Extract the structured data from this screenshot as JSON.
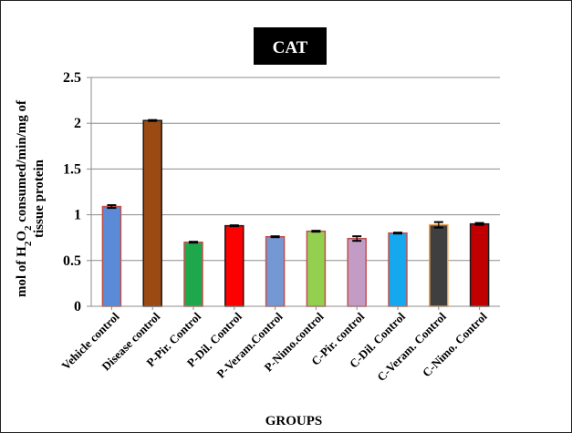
{
  "chart_data": {
    "type": "bar",
    "title": "CAT",
    "xlabel": "GROUPS",
    "ylabel": {
      "prefix": "mol of H",
      "sub1": "2",
      "mid": "O",
      "sub2": "2",
      "suffix": " consumed/min/mg of",
      "line2": "tissue protein"
    },
    "ylim": [
      0,
      2.5
    ],
    "yticks": [
      "0",
      "0.5",
      "1",
      "1.5",
      "2",
      "2.5"
    ],
    "grid": true,
    "categories": [
      "Vehicle control",
      "Disease control",
      "P-Pir. Control",
      "P-Dil. Control",
      "P-Veram.Control",
      "P-Nimo.control",
      "C-Pir. control",
      "C-Dil. Control",
      "C-Veram. Control",
      "C-Nimo. Control"
    ],
    "values": [
      1.09,
      2.03,
      0.7,
      0.88,
      0.76,
      0.82,
      0.74,
      0.8,
      0.89,
      0.9
    ],
    "errors": [
      0.015,
      0.005,
      0.005,
      0.005,
      0.005,
      0.005,
      0.025,
      0.005,
      0.03,
      0.01
    ],
    "colors": [
      "#5b8bd6",
      "#9a4a12",
      "#1fa84b",
      "#ff0000",
      "#7597d3",
      "#93d050",
      "#c39cc6",
      "#16a8ee",
      "#3f3f3f",
      "#c00000"
    ],
    "border_colors": [
      "#c0504d",
      "#1a1a1a",
      "#c0504d",
      "#1a1a1a",
      "#c0504d",
      "#c0504d",
      "#c0504d",
      "#c0504d",
      "#f0a048",
      "#1a1a1a"
    ]
  }
}
